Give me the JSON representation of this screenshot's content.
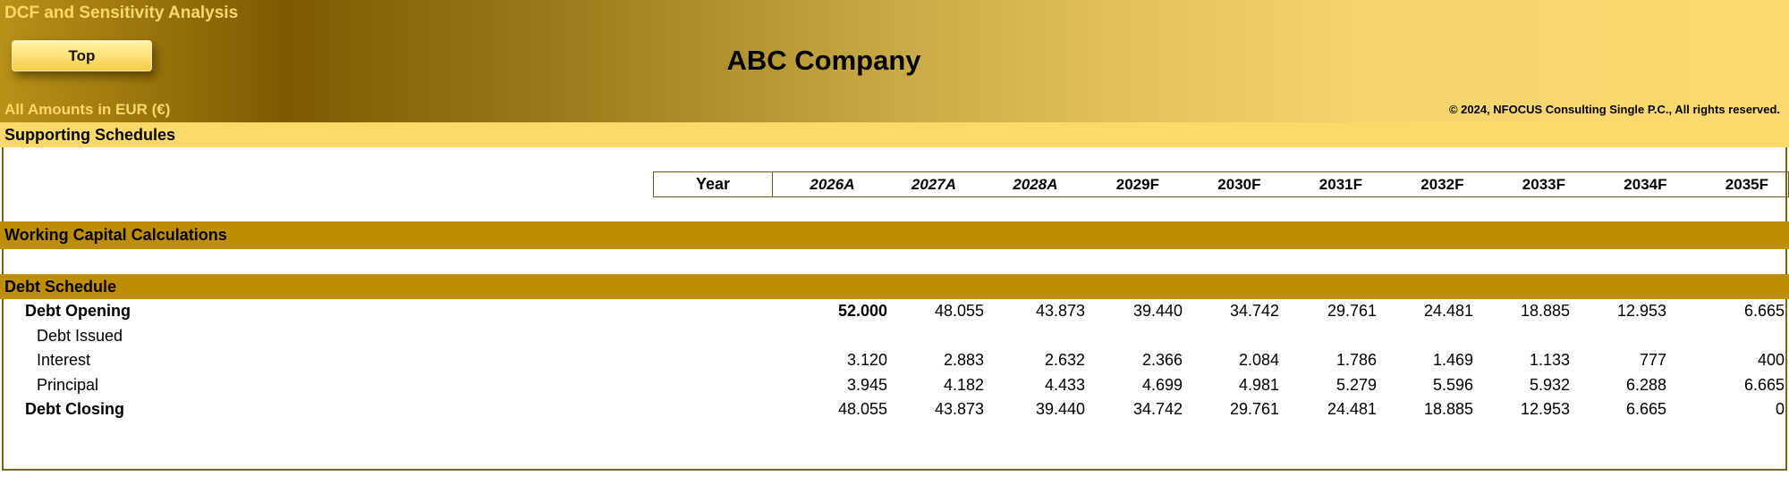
{
  "header": {
    "title": "DCF and Sensitivity Analysis",
    "top_button": "Top",
    "company": "ABC Company",
    "amounts_note": "All Amounts in  EUR (€)",
    "copyright": "© 2024, NFOCUS Consulting Single P.C., All rights reserved."
  },
  "sections": {
    "supporting": "Supporting Schedules",
    "working_capital": "Working Capital Calculations",
    "debt_schedule": "Debt Schedule"
  },
  "years": {
    "label": "Year",
    "columns": [
      "2026A",
      "2027A",
      "2028A",
      "2029F",
      "2030F",
      "2031F",
      "2032F",
      "2033F",
      "2034F",
      "2035F"
    ]
  },
  "debt_rows": [
    {
      "label": "Debt Opening",
      "style": "bold",
      "values": [
        "52.000",
        "48.055",
        "43.873",
        "39.440",
        "34.742",
        "29.761",
        "24.481",
        "18.885",
        "12.953",
        "6.665"
      ]
    },
    {
      "label": "Debt Issued",
      "style": "sub",
      "values": [
        "",
        "",
        "",
        "",
        "",
        "",
        "",
        "",
        "",
        ""
      ]
    },
    {
      "label": "Interest",
      "style": "sub",
      "values": [
        "3.120",
        "2.883",
        "2.632",
        "2.366",
        "2.084",
        "1.786",
        "1.469",
        "1.133",
        "777",
        "400"
      ]
    },
    {
      "label": "Principal",
      "style": "sub",
      "values": [
        "3.945",
        "4.182",
        "4.433",
        "4.699",
        "4.981",
        "5.279",
        "5.596",
        "5.932",
        "6.288",
        "6.665"
      ]
    },
    {
      "label": "Debt Closing",
      "style": "bold",
      "values": [
        "48.055",
        "43.873",
        "39.440",
        "34.742",
        "29.761",
        "24.481",
        "18.885",
        "12.953",
        "6.665",
        "0"
      ]
    }
  ]
}
